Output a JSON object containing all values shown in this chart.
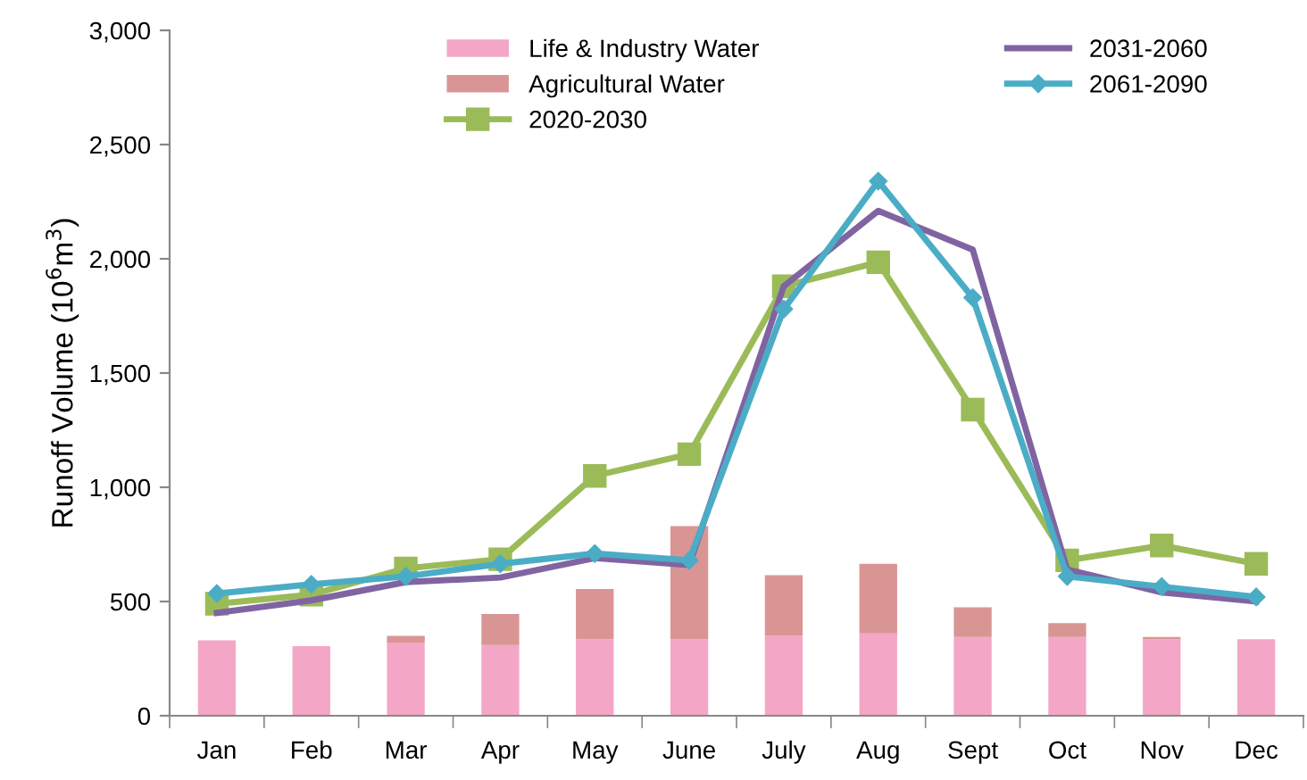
{
  "chart_data": {
    "type": "bar",
    "stacked": true,
    "ylabel": "Runoff Volume (10$^{6}$m$^{3}$)",
    "categories": [
      "Jan",
      "Feb",
      "Mar",
      "Apr",
      "May",
      "June",
      "July",
      "Aug",
      "Sept",
      "Oct",
      "Nov",
      "Dec"
    ],
    "series": [
      {
        "name": "Life & Industry Water",
        "color": "#f4a6c6",
        "values": [
          330,
          305,
          320,
          310,
          335,
          335,
          350,
          360,
          345,
          345,
          335,
          335
        ]
      },
      {
        "name": "Agricultural Water",
        "color": "#d99594",
        "values": [
          0,
          0,
          30,
          135,
          220,
          495,
          265,
          305,
          130,
          60,
          10,
          0
        ]
      },
      {
        "name": "2020-2030",
        "type": "line",
        "marker": "square",
        "color": "#9bbb59",
        "values": [
          490,
          530,
          645,
          685,
          1050,
          1145,
          1880,
          1985,
          1340,
          680,
          745,
          665
        ]
      },
      {
        "name": "2031-2060",
        "type": "line",
        "marker": "none",
        "color": "#8064a2",
        "values": [
          450,
          505,
          585,
          605,
          690,
          660,
          1880,
          2210,
          2040,
          640,
          540,
          500
        ]
      },
      {
        "name": "2061-2090",
        "type": "line",
        "marker": "diamond",
        "color": "#4bacc6",
        "values": [
          535,
          575,
          610,
          665,
          710,
          680,
          1780,
          2340,
          1830,
          610,
          565,
          520
        ]
      }
    ],
    "ylim": [
      0,
      3000
    ],
    "yticks": [
      0,
      {
        "value": 500,
        "label": "500"
      },
      {
        "value": 1000,
        "label": "1,000"
      },
      {
        "value": 1500,
        "label": "1,500"
      },
      {
        "value": 2000,
        "label": "2,000"
      },
      {
        "value": 2500,
        "label": "2,500"
      },
      {
        "value": 3000,
        "label": "3,000"
      }
    ],
    "grid": false,
    "legend": "top"
  }
}
